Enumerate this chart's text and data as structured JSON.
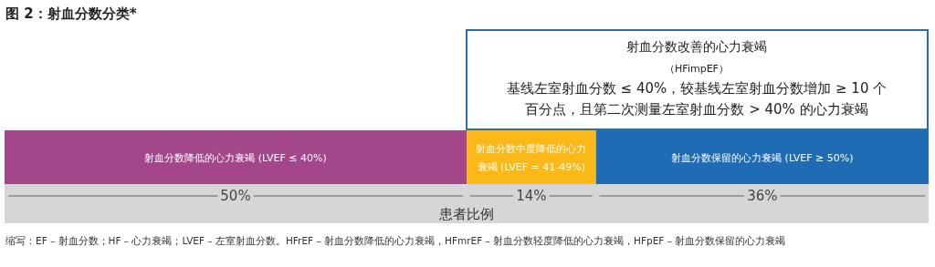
{
  "chart_data": {
    "type": "bar",
    "orientation": "horizontal",
    "stacked": true,
    "title": "图 2：射血分数分类*",
    "xlabel": "患者比例",
    "categories": [
      null
    ],
    "series": [
      {
        "name": "射血分数降低的心力衰竭 (LVEF ≤ 40%)",
        "color": "#a3478a",
        "values": [
          50
        ],
        "value_labels": [
          "50%"
        ]
      },
      {
        "name": "射血分数中度降低的心力衰竭 (LVEF = 41-49%)",
        "color": "#fbb816",
        "values": [
          14
        ],
        "value_labels": [
          "14%"
        ]
      },
      {
        "name": "射血分数保留的心力衰竭 (LVEF ≥ 50%)",
        "color": "#1f6cb4",
        "values": [
          36
        ],
        "value_labels": [
          "36%"
        ]
      }
    ],
    "annotations": [
      "射血分数改善的心力衰竭",
      "（HFimpEF）",
      "基线左室射血分数 ≤ 40%，较基线左室射血分数增加 ≥ 10 个百分点，且第二次测量左室射血分数 > 40% 的心力衰竭",
      "缩写：EF – 射血分数；HF – 心力衰竭；LVEF – 左室射血分数。HFrEF – 射血分数降低的心力衰竭，HFmrEF – 射血分数轻度降低的心力衰竭，HFpEF – 射血分数保留的心力衰竭"
    ]
  }
}
